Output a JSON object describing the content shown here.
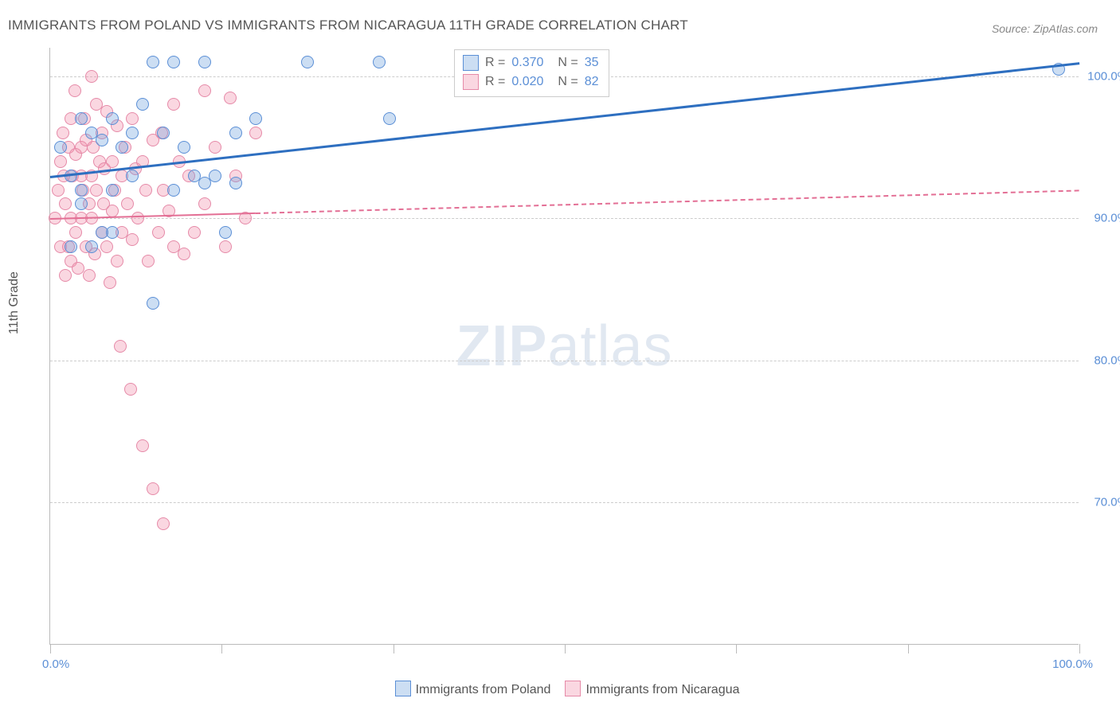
{
  "title": "IMMIGRANTS FROM POLAND VS IMMIGRANTS FROM NICARAGUA 11TH GRADE CORRELATION CHART",
  "source": "Source: ZipAtlas.com",
  "y_axis_title": "11th Grade",
  "watermark_zip": "ZIP",
  "watermark_atlas": "atlas",
  "chart": {
    "type": "scatter",
    "xlim": [
      0,
      100
    ],
    "ylim": [
      60,
      102
    ],
    "y_ticks": [
      70,
      80,
      90,
      100
    ],
    "y_tick_labels": [
      "70.0%",
      "80.0%",
      "90.0%",
      "100.0%"
    ],
    "x_tick_positions": [
      0,
      16.67,
      33.33,
      50,
      66.67,
      83.33,
      100
    ],
    "x_start_label": "0.0%",
    "x_end_label": "100.0%",
    "background_color": "#ffffff",
    "grid_color": "#cccccc",
    "axis_color": "#bbbbbb",
    "tick_label_color": "#5b8fd6",
    "marker_radius": 8,
    "marker_stroke_width": 1.5
  },
  "series": [
    {
      "name": "Immigrants from Poland",
      "fill_color": "rgba(108,160,220,0.35)",
      "stroke_color": "#5b8fd6",
      "r_value": "0.370",
      "n_value": "35",
      "regression": {
        "x1": 0,
        "y1": 93,
        "x2": 100,
        "y2": 101,
        "solid_until_x": 100,
        "color": "#2e6fc0",
        "width": 3
      },
      "points": [
        [
          1,
          95
        ],
        [
          2,
          88
        ],
        [
          2,
          93
        ],
        [
          3,
          97
        ],
        [
          3,
          92
        ],
        [
          3,
          91
        ],
        [
          4,
          96
        ],
        [
          4,
          88
        ],
        [
          5,
          95.5
        ],
        [
          5,
          89
        ],
        [
          6,
          97
        ],
        [
          6,
          92
        ],
        [
          6,
          89
        ],
        [
          7,
          95
        ],
        [
          8,
          96
        ],
        [
          8,
          93
        ],
        [
          9,
          98
        ],
        [
          10,
          101
        ],
        [
          10,
          84
        ],
        [
          11,
          96
        ],
        [
          12,
          101
        ],
        [
          12,
          92
        ],
        [
          13,
          95
        ],
        [
          14,
          93
        ],
        [
          15,
          101
        ],
        [
          15,
          92.5
        ],
        [
          16,
          93
        ],
        [
          17,
          89
        ],
        [
          18,
          96
        ],
        [
          18,
          92.5
        ],
        [
          20,
          97
        ],
        [
          25,
          101
        ],
        [
          32,
          101
        ],
        [
          33,
          97
        ],
        [
          98,
          100.5
        ]
      ]
    },
    {
      "name": "Immigrants from Nicaragua",
      "fill_color": "rgba(240,140,170,0.35)",
      "stroke_color": "#e68aa8",
      "r_value": "0.020",
      "n_value": "82",
      "regression": {
        "x1": 0,
        "y1": 90,
        "x2": 100,
        "y2": 92,
        "solid_until_x": 20,
        "color": "#e36f95",
        "width": 2
      },
      "points": [
        [
          0.5,
          90
        ],
        [
          0.8,
          92
        ],
        [
          1,
          94
        ],
        [
          1,
          88
        ],
        [
          1.2,
          96
        ],
        [
          1.3,
          93
        ],
        [
          1.5,
          91
        ],
        [
          1.5,
          86
        ],
        [
          1.8,
          88
        ],
        [
          1.8,
          95
        ],
        [
          2,
          97
        ],
        [
          2,
          90
        ],
        [
          2,
          87
        ],
        [
          2.2,
          93
        ],
        [
          2.4,
          99
        ],
        [
          2.5,
          94.5
        ],
        [
          2.5,
          89
        ],
        [
          2.7,
          86.5
        ],
        [
          3,
          95
        ],
        [
          3,
          93
        ],
        [
          3,
          90
        ],
        [
          3.2,
          92
        ],
        [
          3.3,
          97
        ],
        [
          3.5,
          95.5
        ],
        [
          3.5,
          88
        ],
        [
          3.8,
          91
        ],
        [
          3.8,
          86
        ],
        [
          4,
          100
        ],
        [
          4,
          93
        ],
        [
          4,
          90
        ],
        [
          4.2,
          95
        ],
        [
          4.3,
          87.5
        ],
        [
          4.5,
          98
        ],
        [
          4.5,
          92
        ],
        [
          4.8,
          94
        ],
        [
          5,
          89
        ],
        [
          5,
          96
        ],
        [
          5.2,
          91
        ],
        [
          5.3,
          93.5
        ],
        [
          5.5,
          97.5
        ],
        [
          5.5,
          88
        ],
        [
          5.8,
          85.5
        ],
        [
          6,
          94
        ],
        [
          6,
          90.5
        ],
        [
          6.3,
          92
        ],
        [
          6.5,
          96.5
        ],
        [
          6.5,
          87
        ],
        [
          6.8,
          81
        ],
        [
          7,
          93
        ],
        [
          7,
          89
        ],
        [
          7.3,
          95
        ],
        [
          7.5,
          91
        ],
        [
          7.8,
          78
        ],
        [
          8,
          97
        ],
        [
          8,
          88.5
        ],
        [
          8.3,
          93.5
        ],
        [
          8.5,
          90
        ],
        [
          9,
          94
        ],
        [
          9,
          74
        ],
        [
          9.3,
          92
        ],
        [
          9.5,
          87
        ],
        [
          10,
          71
        ],
        [
          10,
          95.5
        ],
        [
          10.5,
          89
        ],
        [
          10.8,
          96
        ],
        [
          11,
          68.5
        ],
        [
          11,
          92
        ],
        [
          11.5,
          90.5
        ],
        [
          12,
          88
        ],
        [
          12,
          98
        ],
        [
          12.5,
          94
        ],
        [
          13,
          87.5
        ],
        [
          13.5,
          93
        ],
        [
          14,
          89
        ],
        [
          15,
          99
        ],
        [
          15,
          91
        ],
        [
          16,
          95
        ],
        [
          17,
          88
        ],
        [
          17.5,
          98.5
        ],
        [
          18,
          93
        ],
        [
          19,
          90
        ],
        [
          20,
          96
        ]
      ]
    }
  ],
  "legend_top": {
    "r_prefix": "R  =",
    "n_prefix": "N  ="
  },
  "legend_bottom_labels": [
    "Immigrants from Poland",
    "Immigrants from Nicaragua"
  ]
}
